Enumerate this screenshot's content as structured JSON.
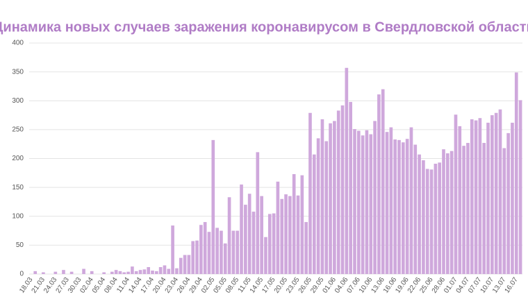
{
  "chart_data": {
    "type": "bar",
    "title": "Динамика новых случаев заражения коронавирусом в Свердловской области",
    "categories": [
      "18.03",
      null,
      null,
      "21.03",
      null,
      null,
      "24.03",
      null,
      null,
      "27.03",
      null,
      null,
      "30.03",
      null,
      null,
      "02.04",
      null,
      null,
      "05.04",
      null,
      null,
      "08.04",
      null,
      null,
      "11.04",
      null,
      null,
      "14.04",
      null,
      null,
      "17.04",
      null,
      null,
      "20.04",
      null,
      null,
      "23.04",
      null,
      null,
      "26.04",
      null,
      null,
      "29.04",
      null,
      null,
      "02.05",
      null,
      null,
      "05.05",
      null,
      null,
      "08.05",
      null,
      null,
      "11.05",
      null,
      null,
      "14.05",
      null,
      null,
      "17.05",
      null,
      null,
      "20.05",
      null,
      null,
      "23.05",
      null,
      null,
      "26.05",
      null,
      null,
      "29.05",
      null,
      null,
      "01.06",
      null,
      null,
      "04.06",
      null,
      null,
      "07.06",
      null,
      null,
      "10.06",
      null,
      null,
      "13.06",
      null,
      null,
      "16.06",
      null,
      null,
      "19.06",
      null,
      null,
      "22.06",
      null,
      null,
      "25.06",
      null,
      null,
      "28.06",
      null,
      null,
      "01.07",
      null,
      null,
      "04.07",
      null,
      null,
      "07.07",
      null,
      null,
      "10.07",
      null,
      null,
      "13.07",
      null,
      null,
      "16.07",
      null
    ],
    "values": [
      0,
      5,
      0,
      3,
      0,
      0,
      4,
      0,
      7,
      0,
      4,
      0,
      0,
      9,
      0,
      5,
      0,
      0,
      3,
      0,
      4,
      7,
      5,
      3,
      4,
      13,
      5,
      7,
      8,
      12,
      6,
      5,
      12,
      15,
      9,
      84,
      10,
      28,
      33,
      33,
      57,
      58,
      85,
      90,
      73,
      232,
      80,
      75,
      53,
      133,
      75,
      75,
      155,
      120,
      139,
      108,
      211,
      135,
      64,
      104,
      105,
      160,
      130,
      138,
      135,
      173,
      136,
      171,
      90,
      279,
      207,
      235,
      268,
      230,
      261,
      265,
      283,
      292,
      357,
      298,
      251,
      248,
      240,
      249,
      242,
      265,
      311,
      320,
      246,
      254,
      233,
      232,
      228,
      234,
      254,
      224,
      207,
      197,
      182,
      181,
      191,
      193,
      216,
      209,
      213,
      276,
      256,
      222,
      227,
      268,
      266,
      270,
      227,
      262,
      275,
      279,
      285,
      218,
      244,
      262,
      349,
      301
    ],
    "color": "#cfa8dc",
    "ylim": [
      0,
      400
    ],
    "yticks": [
      0,
      50,
      100,
      150,
      200,
      250,
      300,
      350,
      400
    ],
    "grid": true
  }
}
